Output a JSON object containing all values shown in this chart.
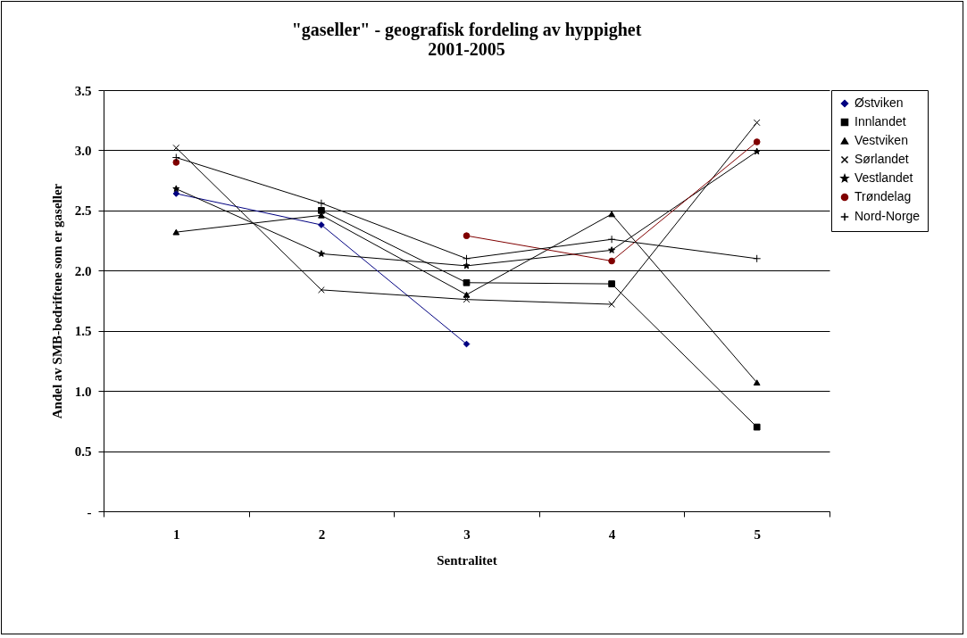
{
  "chart_data": {
    "type": "line",
    "title": "\"gaseller\" - geografisk fordeling av hyppighet\n2001-2005",
    "xlabel": "Sentralitet",
    "ylabel": "Andel av SMB-bedriftene som er gaseller",
    "categories": [
      "1",
      "2",
      "3",
      "4",
      "5"
    ],
    "series": [
      {
        "name": "Østviken",
        "color": "#000080",
        "marker": "diamond",
        "values": [
          2.64,
          2.38,
          1.39,
          null,
          null
        ]
      },
      {
        "name": "Innlandet",
        "color": "#000000",
        "marker": "square",
        "values": [
          null,
          2.5,
          1.9,
          1.89,
          0.7
        ]
      },
      {
        "name": "Vestviken",
        "color": "#000000",
        "marker": "triangle",
        "values": [
          2.32,
          2.46,
          1.8,
          2.47,
          1.07
        ]
      },
      {
        "name": "Sørlandet",
        "color": "#000000",
        "marker": "cross",
        "values": [
          3.02,
          1.84,
          1.76,
          1.72,
          3.23
        ]
      },
      {
        "name": "Vestlandet",
        "color": "#000000",
        "marker": "star",
        "values": [
          2.68,
          2.14,
          2.04,
          2.17,
          2.99
        ]
      },
      {
        "name": "Trøndelag",
        "color": "#800000",
        "marker": "circle",
        "values": [
          2.9,
          null,
          2.29,
          2.08,
          3.07
        ]
      },
      {
        "name": "Nord-Norge",
        "color": "#000000",
        "marker": "plus",
        "values": [
          2.94,
          2.56,
          2.1,
          2.26,
          2.1
        ]
      }
    ],
    "ylim": [
      0,
      3.5
    ],
    "yticks": [
      {
        "value": 0,
        "label": "-"
      },
      0.5,
      {
        "value": 1,
        "label": "1.0"
      },
      1.5,
      {
        "value": 2,
        "label": "2.0"
      },
      2.5,
      {
        "value": 3,
        "label": "3.0"
      },
      3.5
    ],
    "grid": "y",
    "legend": "right",
    "line_style": "solid"
  }
}
